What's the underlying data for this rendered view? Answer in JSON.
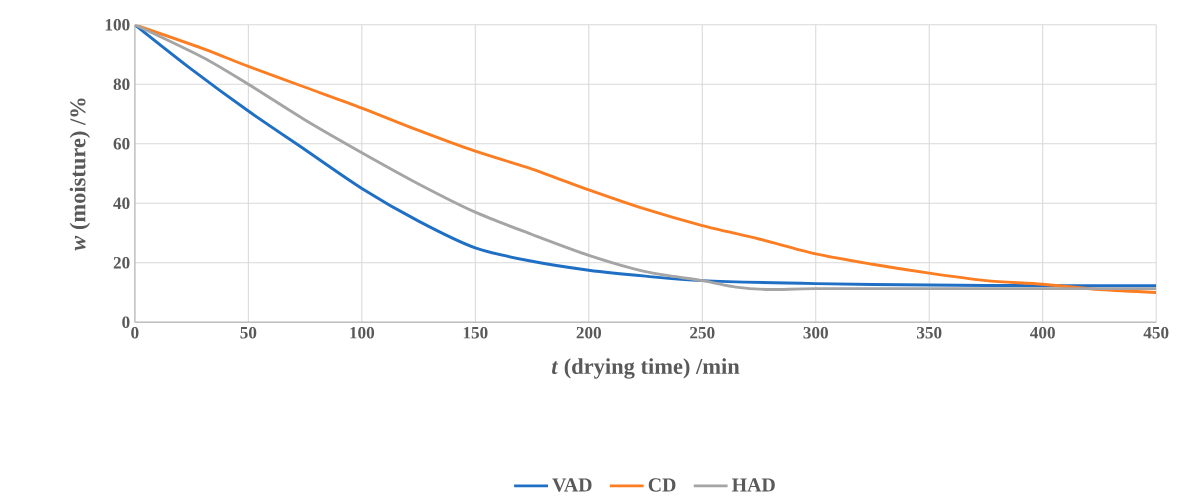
{
  "chart_data": {
    "type": "line",
    "xlabel": "*t* (drying time) /min",
    "ylabel": "*w* (moisture) /%",
    "xlim": [
      0,
      450
    ],
    "ylim": [
      0,
      100
    ],
    "xticks": [
      0,
      50,
      100,
      150,
      200,
      250,
      300,
      350,
      400,
      450
    ],
    "yticks": [
      0,
      20,
      40,
      60,
      80,
      100
    ],
    "grid": true,
    "legend": "bottom",
    "marker": "none",
    "line_style": "solid",
    "series": [
      {
        "name": "VAD",
        "color": "#1f6fc5",
        "x": [
          0,
          25,
          50,
          75,
          100,
          125,
          150,
          175,
          200,
          225,
          250,
          300,
          350,
          400,
          450
        ],
        "values": [
          100,
          85,
          71,
          58,
          45,
          34,
          25,
          20.5,
          17.5,
          15.5,
          14,
          13,
          12.5,
          12.3,
          12.3
        ]
      },
      {
        "name": "CD",
        "color": "#fd7e22",
        "x": [
          0,
          30,
          50,
          75,
          100,
          125,
          150,
          175,
          200,
          225,
          250,
          275,
          300,
          325,
          350,
          375,
          400,
          425,
          450
        ],
        "values": [
          100,
          92,
          86,
          79,
          72,
          64.5,
          57.5,
          51.5,
          44.5,
          38,
          32.5,
          28,
          23,
          19.5,
          16.5,
          14,
          12.8,
          11,
          10
        ]
      },
      {
        "name": "HAD",
        "color": "#a5a5a5",
        "x": [
          0,
          30,
          50,
          75,
          100,
          125,
          150,
          175,
          200,
          225,
          250,
          265,
          280,
          300,
          350,
          400,
          450
        ],
        "values": [
          100,
          89,
          80,
          68,
          57,
          46.5,
          37,
          29.5,
          22.5,
          17,
          14,
          11.8,
          11,
          11.3,
          11.3,
          11.3,
          11.3
        ]
      }
    ]
  }
}
